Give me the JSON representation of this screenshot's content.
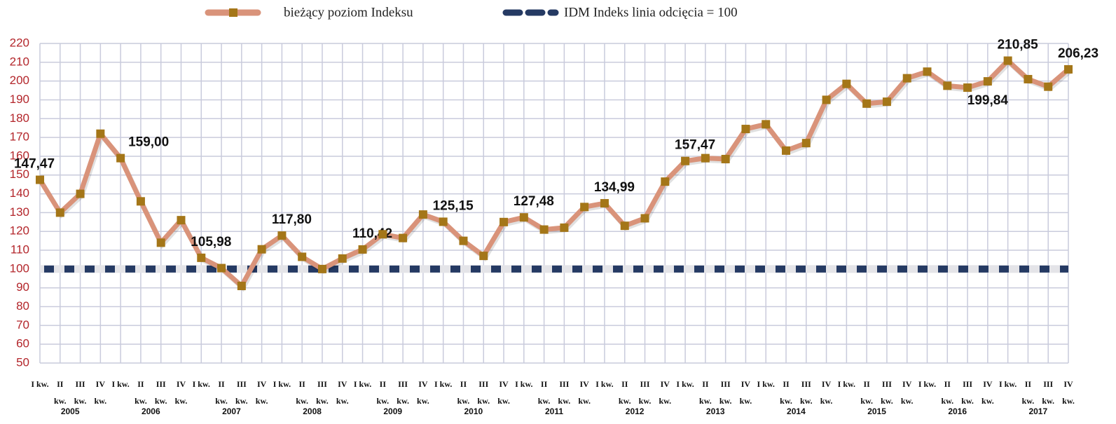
{
  "chart_data": {
    "type": "line",
    "legend": "top",
    "grid": true,
    "ylim": [
      50,
      220
    ],
    "yticks": [
      50,
      60,
      70,
      80,
      90,
      100,
      110,
      120,
      130,
      140,
      150,
      160,
      170,
      180,
      190,
      200,
      210,
      220
    ],
    "categories": [
      "I kw.",
      "II kw.",
      "III kw.",
      "IV kw.",
      "I kw.",
      "II kw.",
      "III kw.",
      "IV kw.",
      "I kw.",
      "II kw.",
      "III kw.",
      "IV kw.",
      "I kw.",
      "II kw.",
      "III kw.",
      "IV kw.",
      "I kw.",
      "II kw.",
      "III kw.",
      "IV kw.",
      "I kw.",
      "II kw.",
      "III kw.",
      "IV kw.",
      "I kw.",
      "II kw.",
      "III kw.",
      "IV kw.",
      "I kw.",
      "II kw.",
      "III kw.",
      "IV kw.",
      "I kw.",
      "II kw.",
      "III kw.",
      "IV kw.",
      "I kw.",
      "II kw.",
      "III kw.",
      "IV kw.",
      "I kw.",
      "II kw.",
      "III kw.",
      "IV kw.",
      "I kw.",
      "II kw.",
      "III kw.",
      "IV kw.",
      "I kw.",
      "II kw.",
      "III kw.",
      "IV kw."
    ],
    "years": [
      "2005",
      "2006",
      "2007",
      "2008",
      "2009",
      "2010",
      "2011",
      "2012",
      "2013",
      "2014",
      "2015",
      "2016",
      "2017"
    ],
    "series": [
      {
        "name": "bieżący poziom Indeksu",
        "color": "#d9937a",
        "marker_color": "#a47618",
        "values": [
          147.47,
          130,
          140,
          172,
          159.0,
          136,
          114,
          126,
          105.98,
          100.5,
          91,
          110.5,
          117.8,
          106.5,
          100,
          105.6,
          110.42,
          118.5,
          116.5,
          129,
          125.15,
          115,
          107,
          125,
          127.48,
          121,
          122,
          133,
          134.99,
          123,
          127,
          146.5,
          157.47,
          159,
          158.5,
          174.5,
          177,
          163,
          167,
          190,
          198.5,
          188,
          189,
          201.5,
          205,
          197.5,
          196.5,
          199.84,
          210.85,
          201,
          197,
          206.23
        ],
        "value_labels": [
          "147,47",
          null,
          null,
          null,
          "159,00",
          null,
          null,
          null,
          "105,98",
          null,
          null,
          null,
          "117,80",
          null,
          null,
          null,
          "110,42",
          null,
          null,
          null,
          "125,15",
          null,
          null,
          null,
          "127,48",
          null,
          null,
          null,
          "134,99",
          null,
          null,
          null,
          "157,47",
          null,
          null,
          null,
          null,
          null,
          null,
          null,
          null,
          null,
          null,
          null,
          null,
          null,
          null,
          "199,84",
          "210,85",
          null,
          null,
          "206,23"
        ]
      }
    ],
    "reference_lines": [
      {
        "name": "IDM Indeks linia odcięcia = 100",
        "value": 100,
        "color": "#253a63"
      }
    ]
  }
}
